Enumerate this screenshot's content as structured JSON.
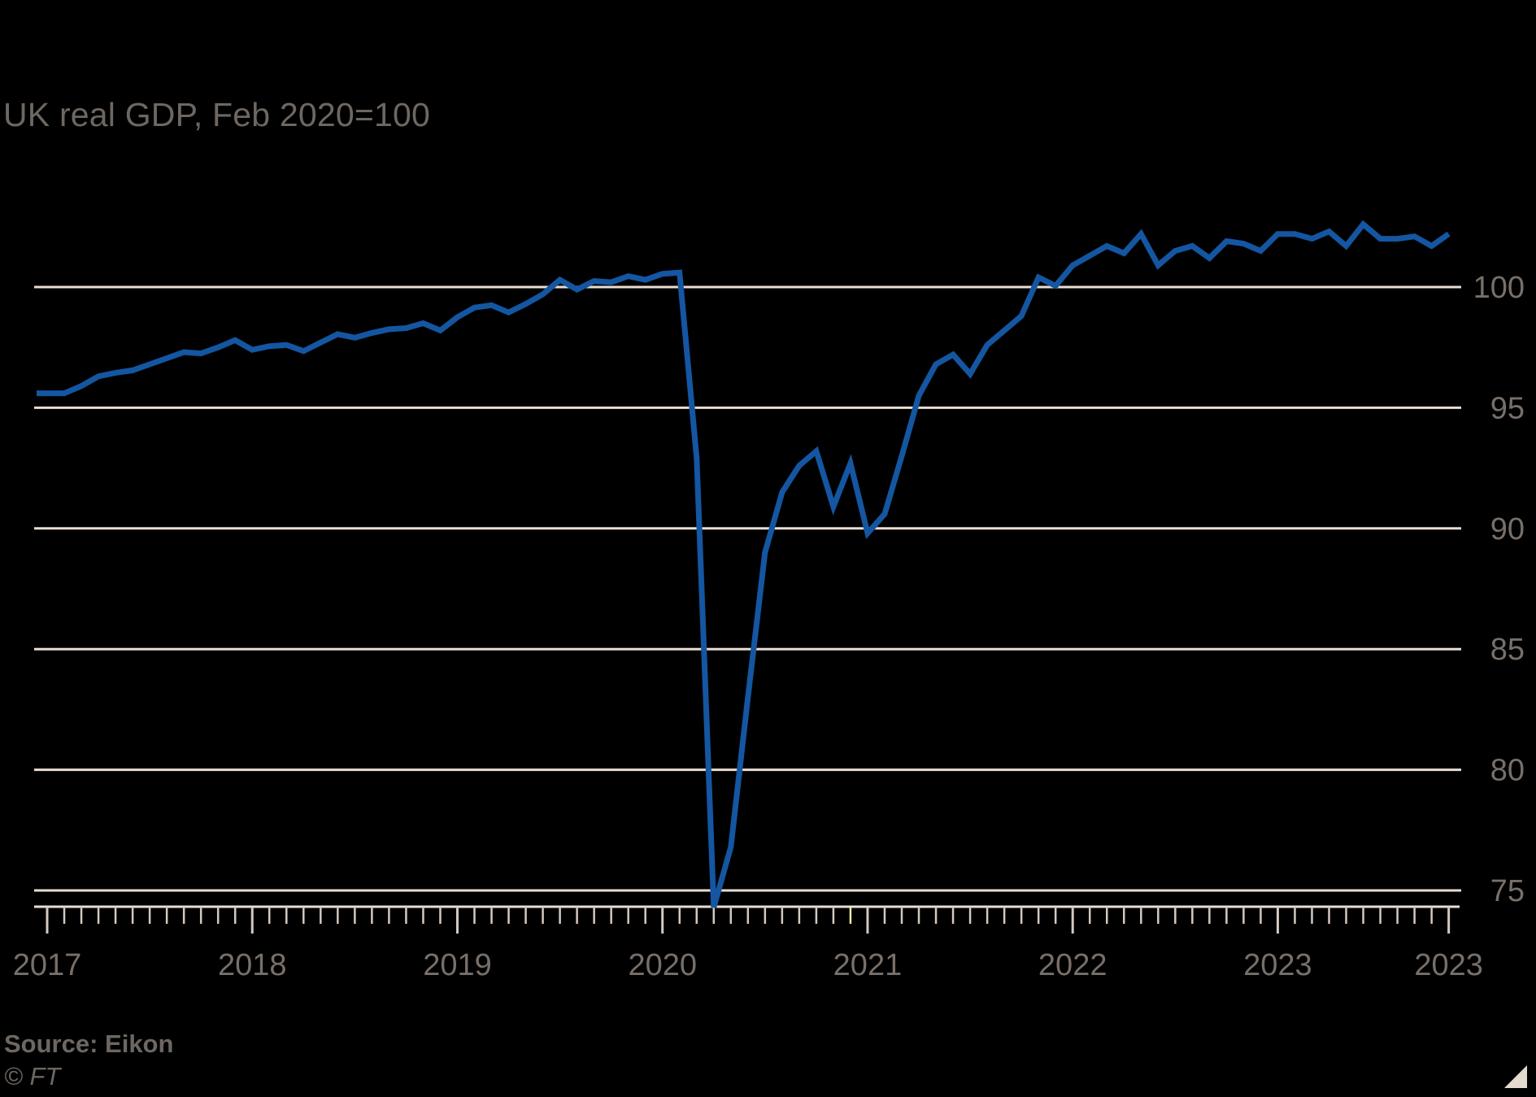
{
  "title": "UK real GDP, Feb 2020=100",
  "source": "Source: Eikon",
  "credit": "© FT",
  "colors": {
    "background": "#000000",
    "line": "#1456a1",
    "gridline": "#e9ddd3",
    "axis_line": "#e9ddd3",
    "tick": "#d4c9bf",
    "highlight_tick": "#efe9a6",
    "title_text": "#6e6761",
    "axis_text": "#786f69",
    "logo_triangle": "#e5dacf"
  },
  "chart_data": {
    "type": "line",
    "title": "UK real GDP, Feb 2020=100",
    "xlabel": "",
    "ylabel": "",
    "grid": "horizontal",
    "legend": "none",
    "ylim": [
      74,
      103
    ],
    "y_ticks": [
      75,
      80,
      85,
      90,
      95,
      100
    ],
    "x_tick_labels": [
      "2017",
      "2018",
      "2019",
      "2020",
      "2021",
      "2022",
      "2023",
      "2023"
    ],
    "highlighted_tick_month": "2020-12",
    "series": [
      {
        "name": "UK real GDP (Feb 2020=100)",
        "months": [
          "2017-01",
          "2017-02",
          "2017-03",
          "2017-04",
          "2017-05",
          "2017-06",
          "2017-07",
          "2017-08",
          "2017-09",
          "2017-10",
          "2017-11",
          "2017-12",
          "2018-01",
          "2018-02",
          "2018-03",
          "2018-04",
          "2018-05",
          "2018-06",
          "2018-07",
          "2018-08",
          "2018-09",
          "2018-10",
          "2018-11",
          "2018-12",
          "2019-01",
          "2019-02",
          "2019-03",
          "2019-04",
          "2019-05",
          "2019-06",
          "2019-07",
          "2019-08",
          "2019-09",
          "2019-10",
          "2019-11",
          "2019-12",
          "2020-01",
          "2020-02",
          "2020-03",
          "2020-04",
          "2020-05",
          "2020-06",
          "2020-07",
          "2020-08",
          "2020-09",
          "2020-10",
          "2020-11",
          "2020-12",
          "2021-01",
          "2021-02",
          "2021-03",
          "2021-04",
          "2021-05",
          "2021-06",
          "2021-07",
          "2021-08",
          "2021-09",
          "2021-10",
          "2021-11",
          "2021-12",
          "2022-01",
          "2022-02",
          "2022-03",
          "2022-04",
          "2022-05",
          "2022-06",
          "2022-07",
          "2022-08",
          "2022-09",
          "2022-10",
          "2022-11",
          "2022-12",
          "2023-01",
          "2023-02",
          "2023-03",
          "2023-04",
          "2023-05",
          "2023-06",
          "2023-07",
          "2023-08",
          "2023-09",
          "2023-10",
          "2023-11"
        ],
        "values": [
          95.6,
          95.6,
          95.9,
          96.3,
          96.45,
          96.55,
          96.8,
          97.05,
          97.3,
          97.25,
          97.5,
          97.8,
          97.4,
          97.55,
          97.6,
          97.35,
          97.7,
          98.05,
          97.9,
          98.1,
          98.25,
          98.3,
          98.5,
          98.2,
          98.75,
          99.15,
          99.25,
          98.95,
          99.3,
          99.7,
          100.3,
          99.9,
          100.25,
          100.2,
          100.45,
          100.3,
          100.55,
          100.6,
          92.9,
          74.3,
          76.8,
          83.0,
          89.0,
          91.5,
          92.6,
          93.2,
          90.9,
          92.7,
          89.8,
          90.6,
          93.0,
          95.5,
          96.8,
          97.2,
          96.4,
          97.6,
          98.2,
          98.8,
          100.4,
          100.05,
          100.9,
          101.3,
          101.7,
          101.4,
          102.2,
          100.9,
          101.5,
          101.7,
          101.2,
          101.9,
          101.8,
          101.5,
          102.2,
          102.2,
          102.0,
          102.3,
          101.7,
          102.6,
          102.0,
          102.0,
          102.1,
          101.7,
          102.2
        ]
      }
    ]
  }
}
